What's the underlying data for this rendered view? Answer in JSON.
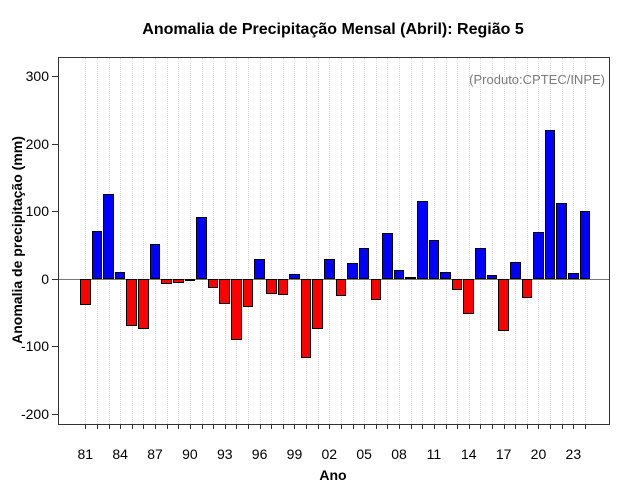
{
  "chart_data": {
    "type": "bar",
    "title": "Anomalia de Precipitação Mensal (Abril): Região 5",
    "xlabel": "Ano",
    "ylabel": "Anomalia de precipitação (mm)",
    "annotation": "(Produto:CPTEC/INPE)",
    "years": [
      1981,
      1982,
      1983,
      1984,
      1985,
      1986,
      1987,
      1988,
      1989,
      1990,
      1991,
      1992,
      1993,
      1994,
      1995,
      1996,
      1997,
      1998,
      1999,
      2000,
      2001,
      2002,
      2003,
      2004,
      2005,
      2006,
      2007,
      2008,
      2009,
      2010,
      2011,
      2012,
      2013,
      2014,
      2015,
      2016,
      2017,
      2018,
      2019,
      2020,
      2021,
      2022,
      2023,
      2024
    ],
    "values": [
      -39,
      71,
      126,
      10,
      -70,
      -75,
      52,
      -7,
      -6,
      -2,
      91,
      -14,
      -37,
      -90,
      -42,
      30,
      -23,
      -24,
      7,
      -118,
      -74,
      30,
      -26,
      23,
      46,
      -32,
      68,
      13,
      2,
      115,
      58,
      10,
      -16,
      -52,
      45,
      6,
      -78,
      25,
      -28,
      69,
      220,
      113,
      8,
      101
    ],
    "x_tick_labels": [
      "81",
      "84",
      "87",
      "90",
      "93",
      "96",
      "99",
      "02",
      "05",
      "08",
      "11",
      "14",
      "17",
      "20",
      "23"
    ],
    "x_tick_label_step": 3,
    "yticks": [
      -200,
      -100,
      0,
      100,
      200,
      300
    ],
    "ylim": [
      -215,
      327
    ],
    "grid": "vertical-dotted-per-year",
    "legend": "none",
    "colors": {
      "positive": "#0000ff",
      "negative": "#ff0000",
      "bar_border": "#000000",
      "gridline": "#d8d8d8",
      "zero_line": "#777777",
      "annotation_text": "#7b7b7b",
      "box_border": "#333333"
    }
  }
}
